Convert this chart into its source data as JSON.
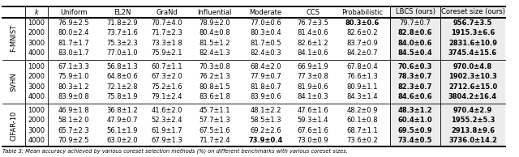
{
  "caption": "Table 3: Mean accuracy achieved by various coreset selection methods (%) on different benchmarks with various coreset sizes.",
  "datasets": [
    "F-MNIST",
    "SVHN",
    "CIFAR-10"
  ],
  "k_values": [
    1000,
    2000,
    3000,
    4000
  ],
  "col_names": [
    "",
    "k",
    "Uniform",
    "EL2N",
    "GraNd",
    "Influential",
    "Moderate",
    "CCS",
    "Probabilistic",
    "LBCS (ours)",
    "Coreset size (ours)"
  ],
  "method_keys": [
    "Uniform",
    "EL2N",
    "GraNd",
    "Influential",
    "Moderate",
    "CCS",
    "Probabilistic",
    "LBCS",
    "Coreset"
  ],
  "data": {
    "F-MNIST": {
      "Uniform": [
        "76.9±2.5",
        "80.0±2.4",
        "81.7±1.7",
        "83.0±1.7"
      ],
      "EL2N": [
        "71.8±2.9",
        "73.7±1.6",
        "75.3±2.3",
        "77.0±1.0"
      ],
      "GraNd": [
        "70.7±4.0",
        "71.7±2.3",
        "73.3±1.8",
        "75.9±2.1"
      ],
      "Influential": [
        "78.9±2.0",
        "80.4±0.8",
        "81.5±1.2",
        "82.4±1.3"
      ],
      "Moderate": [
        "77.0±0.6",
        "80.3±0.4",
        "81.7±0.5",
        "82.4±0.3"
      ],
      "CCS": [
        "76.7±3.5",
        "81.4±0.6",
        "82.6±1.2",
        "84.1±0.6"
      ],
      "Probabilistic": [
        "80.3±0.6",
        "82.6±0.2",
        "83.7±0.9",
        "84.2±0.7"
      ],
      "LBCS": [
        "79.7±0.7",
        "82.8±0.6",
        "84.0±0.6",
        "84.5±0.4"
      ],
      "Coreset": [
        "956.7±3.5",
        "1915.3±6.6",
        "2831.6±10.9",
        "3745.4±15.6"
      ]
    },
    "SVHN": {
      "Uniform": [
        "67.1±3.3",
        "75.9±1.0",
        "80.3±1.2",
        "83.9±0.8"
      ],
      "EL2N": [
        "56.8±1.3",
        "64.8±0.6",
        "72.1±2.8",
        "75.8±1.9"
      ],
      "GraNd": [
        "60.7±1.1",
        "67.3±2.0",
        "75.2±1.6",
        "79.1±2.4"
      ],
      "Influential": [
        "70.3±0.8",
        "76.2±1.3",
        "80.8±1.5",
        "83.6±1.8"
      ],
      "Moderate": [
        "68.4±2.0",
        "77.9±0.7",
        "81.8±0.7",
        "83.9±0.6"
      ],
      "CCS": [
        "66.9±1.9",
        "77.3±0.8",
        "81.9±0.6",
        "84.1±0.3"
      ],
      "Probabilistic": [
        "67.8±0.4",
        "76.6±1.3",
        "80.9±1.1",
        "84.3±1.4"
      ],
      "LBCS": [
        "70.6±0.3",
        "78.3±0.7",
        "82.3±0.7",
        "84.6±0.6"
      ],
      "Coreset": [
        "970.0±4.8",
        "1902.3±10.3",
        "2712.6±15.0",
        "3804.2±16.4"
      ]
    },
    "CIFAR-10": {
      "Uniform": [
        "46.9±1.8",
        "58.1±2.0",
        "65.7±2.3",
        "70.9±2.5"
      ],
      "EL2N": [
        "36.8±1.2",
        "47.9±0.7",
        "56.1±1.9",
        "63.0±2.0"
      ],
      "GraNd": [
        "41.6±2.0",
        "52.3±2.4",
        "61.9±1.7",
        "67.9±1.3"
      ],
      "Influential": [
        "45.7±1.1",
        "57.7±1.3",
        "67.5±1.6",
        "71.7±2.4"
      ],
      "Moderate": [
        "48.1±2.2",
        "58.5±1.3",
        "69.2±2.6",
        "73.9±0.4"
      ],
      "CCS": [
        "47.6±1.6",
        "59.3±1.4",
        "67.6±1.6",
        "73.0±0.9"
      ],
      "Probabilistic": [
        "48.2±0.9",
        "60.1±0.8",
        "68.7±1.1",
        "73.6±0.2"
      ],
      "LBCS": [
        "48.3±1.2",
        "60.4±1.0",
        "69.5±0.9",
        "73.4±0.5"
      ],
      "Coreset": [
        "970.4±2.9",
        "1955.2±5.3",
        "2913.8±9.6",
        "3736.0±14.2"
      ]
    }
  },
  "bold_cells": {
    "F-MNIST": {
      "Probabilistic": [
        0
      ],
      "LBCS": [
        1,
        2,
        3
      ],
      "Coreset": [
        0,
        1,
        2,
        3
      ]
    },
    "SVHN": {
      "LBCS": [
        0,
        1,
        2,
        3
      ],
      "Coreset": [
        0,
        1,
        2,
        3
      ]
    },
    "CIFAR-10": {
      "Moderate": [
        3
      ],
      "LBCS": [
        0,
        1,
        2,
        3
      ],
      "Coreset": [
        0,
        1,
        2,
        3
      ]
    }
  },
  "fontsize": 6.0,
  "shade_color": "#ececec",
  "lw_thick": 1.4,
  "lw_thin": 0.6
}
